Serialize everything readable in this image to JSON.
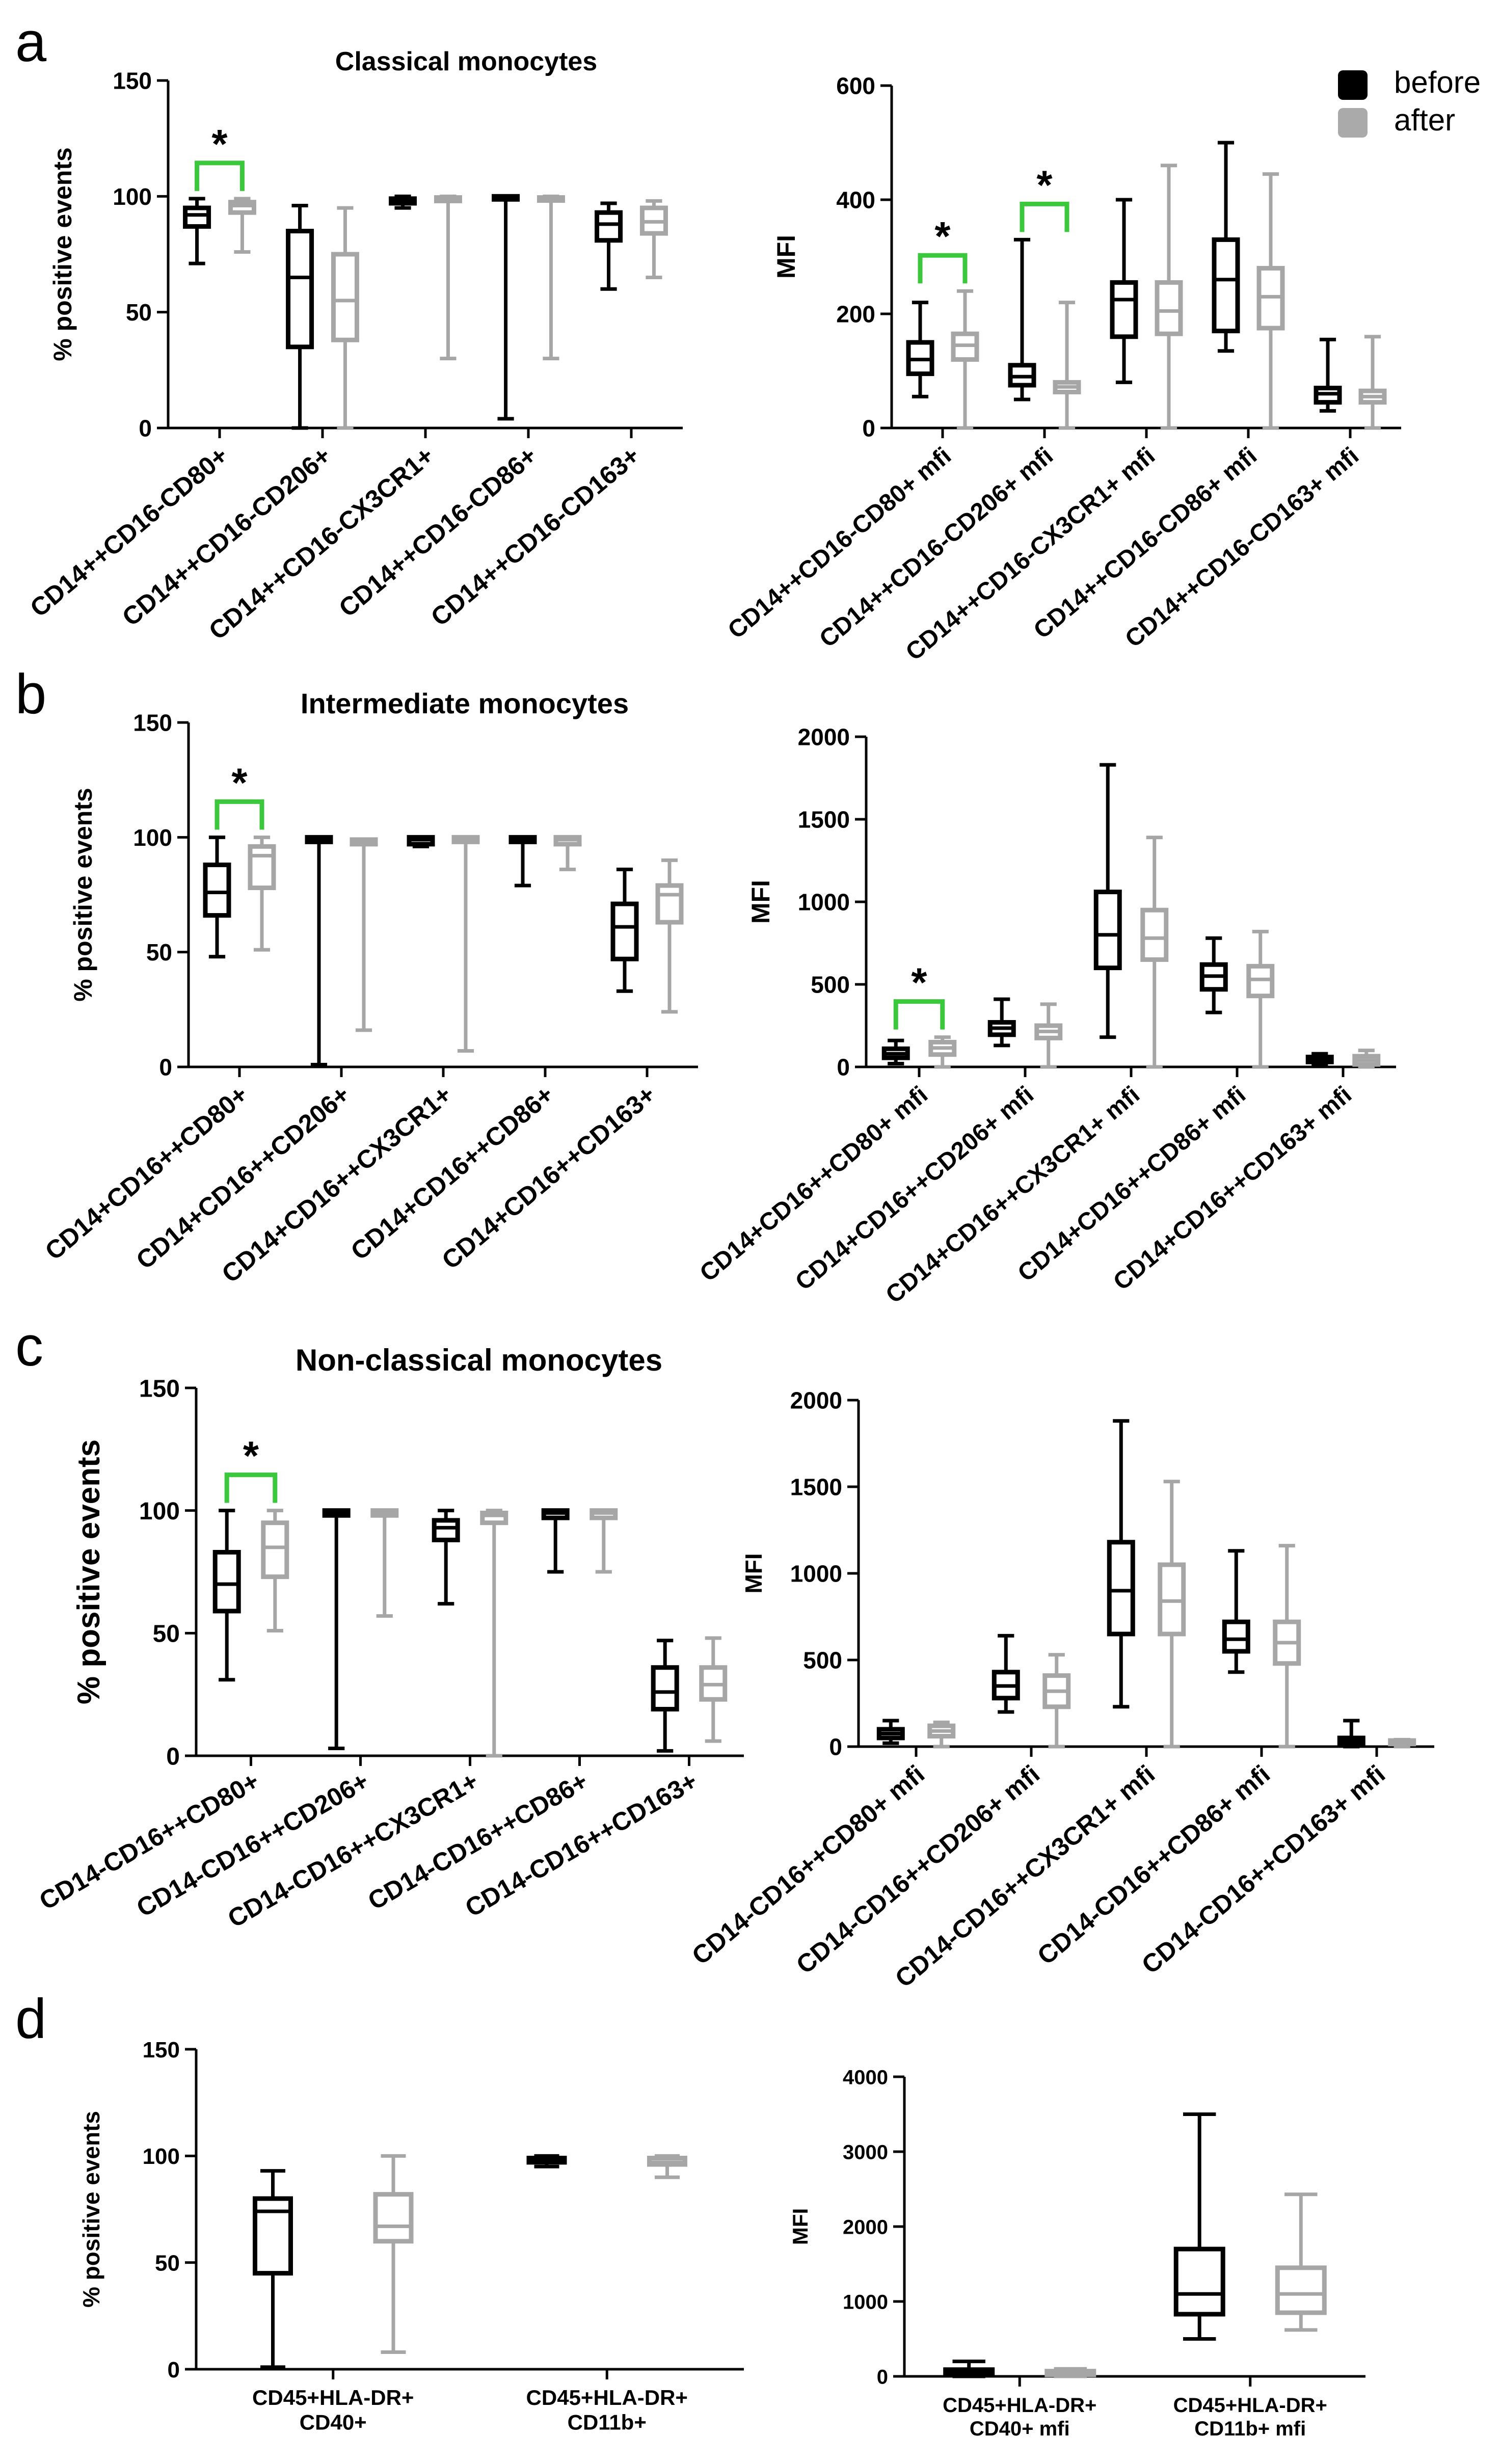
{
  "legend": {
    "position": "top-right",
    "items": [
      {
        "label": "before",
        "color": "#000000"
      },
      {
        "label": "after",
        "color": "#aaaaaa"
      }
    ]
  },
  "colors": {
    "before": "#000000",
    "after": "#a6a6a6",
    "significance": "#3cc83c"
  },
  "chart_data": [
    {
      "id": "a-left",
      "panel_letter": "a",
      "type": "boxplot",
      "title": "Classical monocytes",
      "ylabel": "% positive events",
      "ylim": [
        0,
        150
      ],
      "yticks": [
        0,
        50,
        100,
        150
      ],
      "categories": [
        "CD14++CD16-CD80+",
        "CD14++CD16-CD206+",
        "CD14++CD16-CX3CR1+",
        "CD14++CD16-CD86+",
        "CD14++CD16-CD163+"
      ],
      "series": [
        {
          "name": "before",
          "boxes": [
            {
              "min": 71,
              "q1": 87,
              "median": 92,
              "q3": 95,
              "max": 99
            },
            {
              "min": 0,
              "q1": 35,
              "median": 65,
              "q3": 85,
              "max": 96
            },
            {
              "min": 95,
              "q1": 97,
              "median": 98,
              "q3": 99,
              "max": 100
            },
            {
              "min": 4,
              "q1": 99,
              "median": 99.5,
              "q3": 100,
              "max": 100
            },
            {
              "min": 60,
              "q1": 81,
              "median": 88,
              "q3": 93,
              "max": 97
            }
          ]
        },
        {
          "name": "after",
          "boxes": [
            {
              "min": 76,
              "q1": 93,
              "median": 96,
              "q3": 97.5,
              "max": 99
            },
            {
              "min": 0,
              "q1": 38,
              "median": 55,
              "q3": 75,
              "max": 95
            },
            {
              "min": 30,
              "q1": 98,
              "median": 99,
              "q3": 99.5,
              "max": 100
            },
            {
              "min": 30,
              "q1": 98.5,
              "median": 99,
              "q3": 99.5,
              "max": 100
            },
            {
              "min": 65,
              "q1": 84,
              "median": 89,
              "q3": 95,
              "max": 98
            }
          ]
        }
      ],
      "annotations": [
        {
          "category_index": 0,
          "label": "*"
        }
      ]
    },
    {
      "id": "a-right",
      "panel_letter": "",
      "type": "boxplot",
      "title": "",
      "ylabel": "MFI",
      "ylim": [
        0,
        600
      ],
      "yticks": [
        0,
        200,
        400,
        600
      ],
      "categories": [
        "CD14++CD16-CD80+ mfi",
        "CD14++CD16-CD206+ mfi",
        "CD14++CD16-CX3CR1+ mfi",
        "CD14++CD16-CD86+ mfi",
        "CD14++CD16-CD163+ mfi"
      ],
      "series": [
        {
          "name": "before",
          "boxes": [
            {
              "min": 55,
              "q1": 95,
              "median": 120,
              "q3": 150,
              "max": 220
            },
            {
              "min": 50,
              "q1": 75,
              "median": 90,
              "q3": 110,
              "max": 330
            },
            {
              "min": 80,
              "q1": 160,
              "median": 225,
              "q3": 255,
              "max": 400
            },
            {
              "min": 135,
              "q1": 170,
              "median": 260,
              "q3": 330,
              "max": 500
            },
            {
              "min": 30,
              "q1": 45,
              "median": 60,
              "q3": 70,
              "max": 155
            }
          ]
        },
        {
          "name": "after",
          "boxes": [
            {
              "min": 0,
              "q1": 120,
              "median": 145,
              "q3": 165,
              "max": 240
            },
            {
              "min": 0,
              "q1": 63,
              "median": 72,
              "q3": 80,
              "max": 220
            },
            {
              "min": 0,
              "q1": 165,
              "median": 205,
              "q3": 255,
              "max": 460
            },
            {
              "min": 0,
              "q1": 175,
              "median": 230,
              "q3": 280,
              "max": 445
            },
            {
              "min": 0,
              "q1": 45,
              "median": 55,
              "q3": 65,
              "max": 160
            }
          ]
        }
      ],
      "annotations": [
        {
          "category_index": 0,
          "label": "*"
        },
        {
          "category_index": 1,
          "label": "*"
        }
      ]
    },
    {
      "id": "b-left",
      "panel_letter": "b",
      "type": "boxplot",
      "title": "Intermediate monocytes",
      "ylabel": "% positive events",
      "ylim": [
        0,
        150
      ],
      "yticks": [
        0,
        50,
        100,
        150
      ],
      "categories": [
        "CD14+CD16++CD80+",
        "CD14+CD16++CD206+",
        "CD14+CD16++CX3CR1+",
        "CD14+CD16++CD86+",
        "CD14+CD16++CD163+"
      ],
      "series": [
        {
          "name": "before",
          "boxes": [
            {
              "min": 48,
              "q1": 66,
              "median": 76,
              "q3": 88,
              "max": 100
            },
            {
              "min": 1,
              "q1": 98,
              "median": 99,
              "q3": 100,
              "max": 100
            },
            {
              "min": 96,
              "q1": 97,
              "median": 99,
              "q3": 100,
              "max": 100
            },
            {
              "min": 79,
              "q1": 98,
              "median": 99,
              "q3": 100,
              "max": 100
            },
            {
              "min": 33,
              "q1": 47,
              "median": 61,
              "q3": 71,
              "max": 86
            }
          ]
        },
        {
          "name": "after",
          "boxes": [
            {
              "min": 51,
              "q1": 78,
              "median": 92,
              "q3": 96,
              "max": 100
            },
            {
              "min": 16,
              "q1": 97,
              "median": 98,
              "q3": 99,
              "max": 99
            },
            {
              "min": 7,
              "q1": 98,
              "median": 99,
              "q3": 100,
              "max": 100
            },
            {
              "min": 86,
              "q1": 97,
              "median": 99,
              "q3": 100,
              "max": 100
            },
            {
              "min": 24,
              "q1": 63,
              "median": 75,
              "q3": 79,
              "max": 90
            }
          ]
        }
      ],
      "annotations": [
        {
          "category_index": 0,
          "label": "*"
        }
      ]
    },
    {
      "id": "b-right",
      "panel_letter": "",
      "type": "boxplot",
      "title": "",
      "ylabel": "MFI",
      "ylim": [
        0,
        2000
      ],
      "yticks": [
        0,
        500,
        1000,
        1500,
        2000
      ],
      "categories": [
        "CD14+CD16++CD80+ mfi",
        "CD14+CD16++CD206+ mfi",
        "CD14+CD16++CX3CR1+ mfi",
        "CD14+CD16++CD86+ mfi",
        "CD14+CD16++CD163+ mfi"
      ],
      "series": [
        {
          "name": "before",
          "boxes": [
            {
              "min": 20,
              "q1": 55,
              "median": 80,
              "q3": 110,
              "max": 160
            },
            {
              "min": 130,
              "q1": 195,
              "median": 235,
              "q3": 270,
              "max": 410
            },
            {
              "min": 180,
              "q1": 600,
              "median": 800,
              "q3": 1060,
              "max": 1830
            },
            {
              "min": 330,
              "q1": 470,
              "median": 550,
              "q3": 620,
              "max": 780
            },
            {
              "min": 15,
              "q1": 30,
              "median": 45,
              "q3": 60,
              "max": 80
            }
          ]
        },
        {
          "name": "after",
          "boxes": [
            {
              "min": 0,
              "q1": 75,
              "median": 115,
              "q3": 150,
              "max": 180
            },
            {
              "min": 0,
              "q1": 175,
              "median": 215,
              "q3": 250,
              "max": 380
            },
            {
              "min": 0,
              "q1": 650,
              "median": 780,
              "q3": 950,
              "max": 1390
            },
            {
              "min": 0,
              "q1": 430,
              "median": 530,
              "q3": 610,
              "max": 820
            },
            {
              "min": 0,
              "q1": 15,
              "median": 40,
              "q3": 65,
              "max": 100
            }
          ]
        }
      ],
      "annotations": [
        {
          "category_index": 0,
          "label": "*"
        }
      ]
    },
    {
      "id": "c-left",
      "panel_letter": "c",
      "type": "boxplot",
      "title": "Non-classical monocytes",
      "ylabel": "% positive events",
      "ylim": [
        0,
        150
      ],
      "yticks": [
        0,
        50,
        100,
        150
      ],
      "categories": [
        "CD14-CD16++CD80+",
        "CD14-CD16++CD206+",
        "CD14-CD16++CX3CR1+",
        "CD14-CD16++CD86+",
        "CD14-CD16++CD163+"
      ],
      "series": [
        {
          "name": "before",
          "boxes": [
            {
              "min": 31,
              "q1": 59,
              "median": 70,
              "q3": 83,
              "max": 100
            },
            {
              "min": 3,
              "q1": 98,
              "median": 99,
              "q3": 100,
              "max": 100
            },
            {
              "min": 62,
              "q1": 88,
              "median": 93,
              "q3": 96,
              "max": 100
            },
            {
              "min": 75,
              "q1": 97,
              "median": 99,
              "q3": 100,
              "max": 100
            },
            {
              "min": 2,
              "q1": 19,
              "median": 26,
              "q3": 36,
              "max": 47
            }
          ]
        },
        {
          "name": "after",
          "boxes": [
            {
              "min": 51,
              "q1": 73,
              "median": 85,
              "q3": 95,
              "max": 100
            },
            {
              "min": 57,
              "q1": 98,
              "median": 99,
              "q3": 100,
              "max": 100
            },
            {
              "min": 0,
              "q1": 95,
              "median": 98,
              "q3": 99,
              "max": 100
            },
            {
              "min": 75,
              "q1": 97,
              "median": 99,
              "q3": 100,
              "max": 100
            },
            {
              "min": 6,
              "q1": 23,
              "median": 29,
              "q3": 36,
              "max": 48
            }
          ]
        }
      ],
      "annotations": [
        {
          "category_index": 0,
          "label": "*"
        }
      ]
    },
    {
      "id": "c-right",
      "panel_letter": "",
      "type": "boxplot",
      "title": "",
      "ylabel": "MFI",
      "ylim": [
        0,
        2000
      ],
      "yticks": [
        0,
        500,
        1000,
        1500,
        2000
      ],
      "categories": [
        "CD14-CD16++CD80+ mfi",
        "CD14-CD16++CD206+ mfi",
        "CD14-CD16++CX3CR1+ mfi",
        "CD14-CD16++CD86+ mfi",
        "CD14-CD16++CD163+ mfi"
      ],
      "series": [
        {
          "name": "before",
          "boxes": [
            {
              "min": 20,
              "q1": 50,
              "median": 75,
              "q3": 100,
              "max": 150
            },
            {
              "min": 200,
              "q1": 280,
              "median": 350,
              "q3": 430,
              "max": 640
            },
            {
              "min": 230,
              "q1": 650,
              "median": 900,
              "q3": 1180,
              "max": 1880
            },
            {
              "min": 430,
              "q1": 550,
              "median": 620,
              "q3": 720,
              "max": 1130
            },
            {
              "min": 0,
              "q1": 20,
              "median": 35,
              "q3": 50,
              "max": 150
            }
          ]
        },
        {
          "name": "after",
          "boxes": [
            {
              "min": 0,
              "q1": 60,
              "median": 90,
              "q3": 120,
              "max": 140
            },
            {
              "min": 0,
              "q1": 230,
              "median": 320,
              "q3": 410,
              "max": 530
            },
            {
              "min": 0,
              "q1": 650,
              "median": 840,
              "q3": 1050,
              "max": 1530
            },
            {
              "min": 0,
              "q1": 480,
              "median": 600,
              "q3": 720,
              "max": 1160
            },
            {
              "min": 0,
              "q1": 15,
              "median": 25,
              "q3": 35,
              "max": 40
            }
          ]
        }
      ],
      "annotations": []
    },
    {
      "id": "d-left",
      "panel_letter": "d",
      "type": "boxplot",
      "title": "",
      "ylabel": "% positive events",
      "ylim": [
        0,
        150
      ],
      "yticks": [
        0,
        50,
        100,
        150
      ],
      "categories": [
        "CD45+HLA-DR+\nCD40+",
        "CD45+HLA-DR+\nCD11b+"
      ],
      "series": [
        {
          "name": "before",
          "boxes": [
            {
              "min": 1,
              "q1": 45,
              "median": 74,
              "q3": 80,
              "max": 93
            },
            {
              "min": 95,
              "q1": 97,
              "median": 98,
              "q3": 99,
              "max": 100
            }
          ]
        },
        {
          "name": "after",
          "boxes": [
            {
              "min": 8,
              "q1": 60,
              "median": 67,
              "q3": 82,
              "max": 100
            },
            {
              "min": 90,
              "q1": 96,
              "median": 97,
              "q3": 99,
              "max": 100
            }
          ]
        }
      ],
      "annotations": []
    },
    {
      "id": "d-right",
      "panel_letter": "",
      "type": "boxplot",
      "title": "",
      "ylabel": "MFI",
      "ylim": [
        0,
        4000
      ],
      "yticks": [
        0,
        1000,
        2000,
        3000,
        4000
      ],
      "categories": [
        "CD45+HLA-DR+\nCD40+ mfi",
        "CD45+HLA-DR+\nCD11b+ mfi"
      ],
      "series": [
        {
          "name": "before",
          "boxes": [
            {
              "min": 0,
              "q1": 20,
              "median": 50,
              "q3": 90,
              "max": 200
            },
            {
              "min": 500,
              "q1": 830,
              "median": 1100,
              "q3": 1700,
              "max": 3500
            }
          ]
        },
        {
          "name": "after",
          "boxes": [
            {
              "min": 0,
              "q1": 20,
              "median": 40,
              "q3": 70,
              "max": 100
            },
            {
              "min": 620,
              "q1": 850,
              "median": 1100,
              "q3": 1450,
              "max": 2430
            }
          ]
        }
      ],
      "annotations": []
    }
  ]
}
